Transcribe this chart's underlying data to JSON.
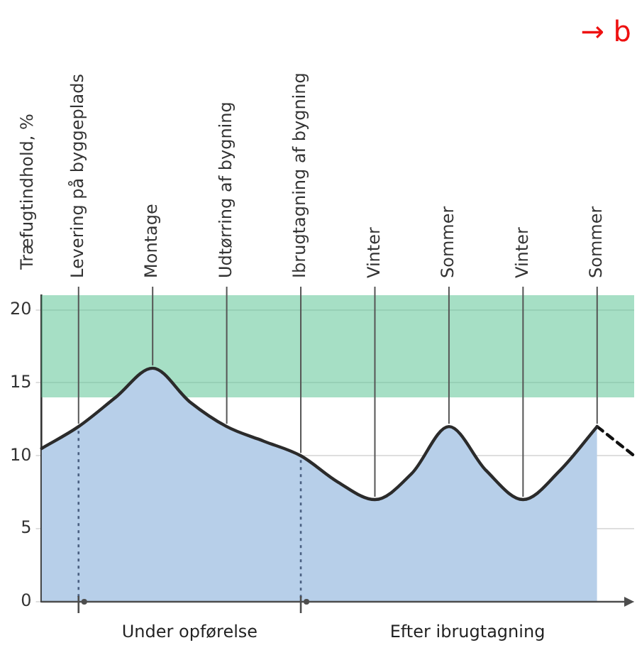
{
  "chart_data": {
    "type": "area",
    "ylabel": "Træfugtindhold, %",
    "categories": [
      null,
      "Levering på byggeplads",
      null,
      "Montage",
      null,
      "Udtørring af bygning",
      null,
      "Ibrugtagning af bygning",
      null,
      "Vinter",
      null,
      "Sommer",
      null,
      "Vinter",
      null,
      "Sommer",
      null
    ],
    "series": [
      {
        "color": "#b7cfe9",
        "values": [
          10.5,
          12,
          14,
          16,
          13.7,
          12,
          11,
          10,
          8.2,
          7,
          8.8,
          12,
          9,
          7,
          9,
          12,
          null
        ]
      },
      {
        "type": "line",
        "line_style": "dashed",
        "color": "#111111",
        "values": [
          null,
          null,
          null,
          null,
          null,
          null,
          null,
          null,
          null,
          null,
          null,
          null,
          null,
          null,
          null,
          12,
          10
        ]
      }
    ],
    "ylim": [
      0,
      21
    ],
    "yticks": [
      0,
      5,
      10,
      15,
      20
    ],
    "grid": "y",
    "bands": [
      {
        "axis": "y",
        "from": 14,
        "to": 21,
        "color": "#5cc495"
      }
    ],
    "annotations": [
      "Under opførelse",
      "Efter ibrugtagning",
      "→ b"
    ]
  }
}
